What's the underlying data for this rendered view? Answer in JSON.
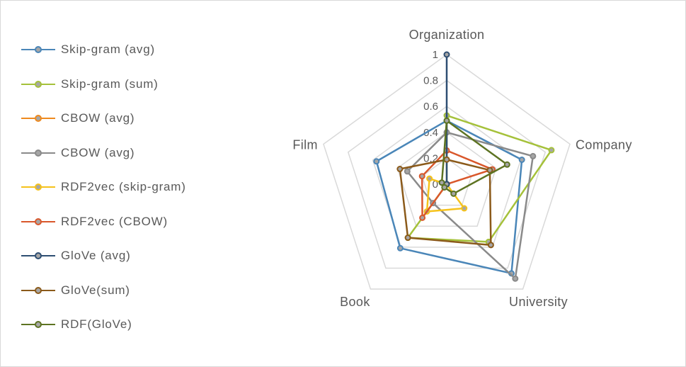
{
  "chart_data": {
    "type": "radar",
    "title": "",
    "categories": [
      "Organization",
      "Company",
      "University",
      "Book",
      "Film"
    ],
    "ticks": [
      "0",
      "0.2",
      "0.4",
      "0.6",
      "0.8",
      "1"
    ],
    "range": [
      0,
      1
    ],
    "grid": true,
    "legend_position": "left",
    "series": [
      {
        "name": "Skip-gram (avg)",
        "color": "#4a86b8",
        "values": [
          0.49,
          0.61,
          0.85,
          0.61,
          0.57
        ]
      },
      {
        "name": "Skip-gram (sum)",
        "color": "#a5c13a",
        "values": [
          0.53,
          0.85,
          0.55,
          0.51,
          0.0
        ]
      },
      {
        "name": "CBOW (avg)",
        "color": "#ee8a1f",
        "values": [
          0.0,
          0.0,
          0.0,
          0.0,
          0.0
        ]
      },
      {
        "name": "CBOW (avg)",
        "color": "#8a8a8a",
        "values": [
          0.4,
          0.7,
          0.9,
          0.18,
          0.32
        ]
      },
      {
        "name": "RDF2vec (skip-gram)",
        "color": "#f5c21b",
        "values": [
          0.0,
          0.0,
          0.23,
          0.26,
          0.14
        ]
      },
      {
        "name": "RDF2vec (CBOW)",
        "color": "#d9572b",
        "values": [
          0.26,
          0.37,
          0.0,
          0.32,
          0.2
        ]
      },
      {
        "name": "GloVe (avg)",
        "color": "#2e4e72",
        "values": [
          1.0,
          0.0,
          0.0,
          0.0,
          0.0
        ]
      },
      {
        "name": "GloVe(sum)",
        "color": "#8b5a1a",
        "values": [
          0.19,
          0.35,
          0.58,
          0.51,
          0.38
        ]
      },
      {
        "name": "RDF(GloVe)",
        "color": "#5d7322",
        "values": [
          0.49,
          0.49,
          0.09,
          0.03,
          0.04
        ]
      }
    ]
  }
}
